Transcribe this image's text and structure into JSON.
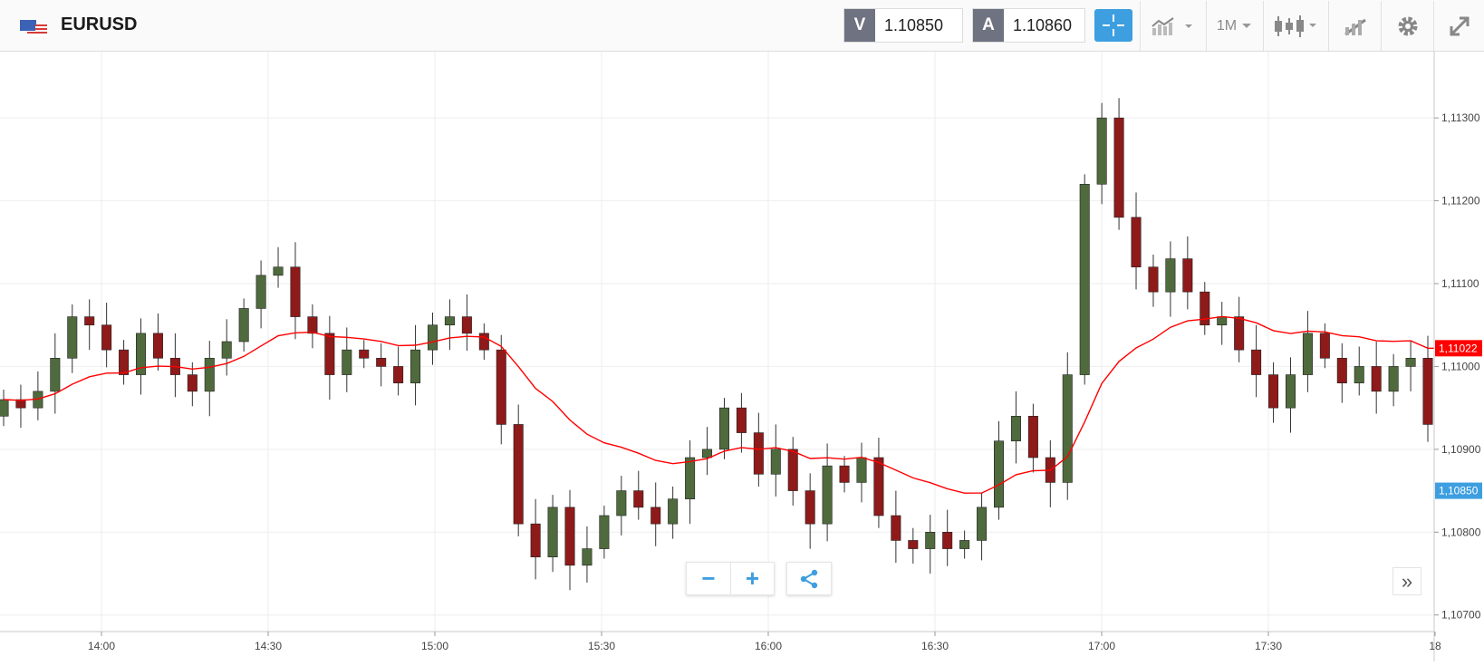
{
  "toolbar": {
    "flag_icon": "eu-us-flag-icon",
    "symbol": "EURUSD",
    "bid_letter": "V",
    "bid_value": "1.10850",
    "ask_letter": "A",
    "ask_value": "1.10860",
    "timeframe": "1M",
    "icons": [
      "crosshair-icon",
      "chart-type-icon",
      "timeframe-dropdown",
      "candlestick-icon",
      "drawing-tool-icon",
      "gear-icon",
      "fullscreen-icon"
    ]
  },
  "chart": {
    "price_labels": [
      "1,11300",
      "1,11200",
      "1,11100",
      "1,11000",
      "1,10900",
      "1,10800",
      "1,10700"
    ],
    "time_labels": [
      "14:00",
      "14:30",
      "15:00",
      "15:30",
      "16:00",
      "16:30",
      "17:00",
      "17:30",
      "18"
    ],
    "ma_label": "1,11022",
    "bid_label": "1,10850",
    "colors": {
      "up": "#4f6a3d",
      "down": "#8e1a1a",
      "ma": "#ff0000",
      "ma_badge": "#ff0000",
      "bid_badge": "#3d9ee0",
      "grid": "#eeeeee"
    }
  },
  "controls": {
    "zoom_out": "−",
    "zoom_in": "+",
    "share_icon": "share-icon",
    "expand": "»"
  },
  "chart_data": {
    "type": "candlestick",
    "symbol": "EURUSD",
    "timeframe": "1M",
    "x_ticks": [
      "14:00",
      "14:30",
      "15:00",
      "15:30",
      "16:00",
      "16:30",
      "17:00",
      "17:30",
      "18"
    ],
    "y_ticks": [
      1.113,
      1.112,
      1.111,
      1.11,
      1.109,
      1.108,
      1.107
    ],
    "ylim": [
      1.1068,
      1.1138
    ],
    "moving_average_last": 1.11022,
    "bid_last": 1.1085,
    "candles_close": [
      1.1096,
      1.1095,
      1.1097,
      1.1101,
      1.1106,
      1.1105,
      1.1102,
      1.1099,
      1.1104,
      1.1101,
      1.1099,
      1.1097,
      1.1101,
      1.1103,
      1.1107,
      1.1111,
      1.1112,
      1.1106,
      1.1104,
      1.1099,
      1.1102,
      1.1101,
      1.11,
      1.1098,
      1.1102,
      1.1105,
      1.1106,
      1.1104,
      1.1102,
      1.1093,
      1.1081,
      1.1077,
      1.1083,
      1.1076,
      1.1078,
      1.1082,
      1.1085,
      1.1083,
      1.1081,
      1.1084,
      1.1089,
      1.109,
      1.1095,
      1.1092,
      1.1087,
      1.109,
      1.1085,
      1.1081,
      1.1088,
      1.1086,
      1.1089,
      1.1082,
      1.1079,
      1.1078,
      1.108,
      1.1078,
      1.1079,
      1.1083,
      1.1091,
      1.1094,
      1.1089,
      1.1086,
      1.1099,
      1.1122,
      1.113,
      1.1118,
      1.1112,
      1.1109,
      1.1113,
      1.1109,
      1.1105,
      1.1106,
      1.1102,
      1.1099,
      1.1095,
      1.1099,
      1.1104,
      1.1101,
      1.1098,
      1.11,
      1.1097,
      1.11,
      1.1101,
      1.1093
    ]
  }
}
